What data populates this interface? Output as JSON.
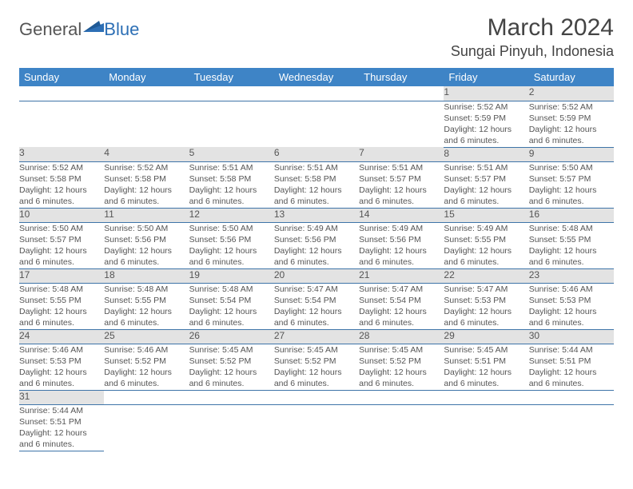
{
  "logo": {
    "text1": "General",
    "text2": "Blue"
  },
  "title": "March 2024",
  "location": "Sungai Pinyuh, Indonesia",
  "colors": {
    "header_bg": "#3e84c6",
    "header_text": "#ffffff",
    "daynum_bg": "#e3e3e3",
    "rule": "#3e74a8",
    "brand_blue": "#2d6fb5",
    "text": "#555555"
  },
  "day_headers": [
    "Sunday",
    "Monday",
    "Tuesday",
    "Wednesday",
    "Thursday",
    "Friday",
    "Saturday"
  ],
  "weeks": [
    [
      null,
      null,
      null,
      null,
      null,
      {
        "n": "1",
        "sr": "5:52 AM",
        "ss": "5:59 PM",
        "dl": "12 hours and 6 minutes."
      },
      {
        "n": "2",
        "sr": "5:52 AM",
        "ss": "5:59 PM",
        "dl": "12 hours and 6 minutes."
      }
    ],
    [
      {
        "n": "3",
        "sr": "5:52 AM",
        "ss": "5:58 PM",
        "dl": "12 hours and 6 minutes."
      },
      {
        "n": "4",
        "sr": "5:52 AM",
        "ss": "5:58 PM",
        "dl": "12 hours and 6 minutes."
      },
      {
        "n": "5",
        "sr": "5:51 AM",
        "ss": "5:58 PM",
        "dl": "12 hours and 6 minutes."
      },
      {
        "n": "6",
        "sr": "5:51 AM",
        "ss": "5:58 PM",
        "dl": "12 hours and 6 minutes."
      },
      {
        "n": "7",
        "sr": "5:51 AM",
        "ss": "5:57 PM",
        "dl": "12 hours and 6 minutes."
      },
      {
        "n": "8",
        "sr": "5:51 AM",
        "ss": "5:57 PM",
        "dl": "12 hours and 6 minutes."
      },
      {
        "n": "9",
        "sr": "5:50 AM",
        "ss": "5:57 PM",
        "dl": "12 hours and 6 minutes."
      }
    ],
    [
      {
        "n": "10",
        "sr": "5:50 AM",
        "ss": "5:57 PM",
        "dl": "12 hours and 6 minutes."
      },
      {
        "n": "11",
        "sr": "5:50 AM",
        "ss": "5:56 PM",
        "dl": "12 hours and 6 minutes."
      },
      {
        "n": "12",
        "sr": "5:50 AM",
        "ss": "5:56 PM",
        "dl": "12 hours and 6 minutes."
      },
      {
        "n": "13",
        "sr": "5:49 AM",
        "ss": "5:56 PM",
        "dl": "12 hours and 6 minutes."
      },
      {
        "n": "14",
        "sr": "5:49 AM",
        "ss": "5:56 PM",
        "dl": "12 hours and 6 minutes."
      },
      {
        "n": "15",
        "sr": "5:49 AM",
        "ss": "5:55 PM",
        "dl": "12 hours and 6 minutes."
      },
      {
        "n": "16",
        "sr": "5:48 AM",
        "ss": "5:55 PM",
        "dl": "12 hours and 6 minutes."
      }
    ],
    [
      {
        "n": "17",
        "sr": "5:48 AM",
        "ss": "5:55 PM",
        "dl": "12 hours and 6 minutes."
      },
      {
        "n": "18",
        "sr": "5:48 AM",
        "ss": "5:55 PM",
        "dl": "12 hours and 6 minutes."
      },
      {
        "n": "19",
        "sr": "5:48 AM",
        "ss": "5:54 PM",
        "dl": "12 hours and 6 minutes."
      },
      {
        "n": "20",
        "sr": "5:47 AM",
        "ss": "5:54 PM",
        "dl": "12 hours and 6 minutes."
      },
      {
        "n": "21",
        "sr": "5:47 AM",
        "ss": "5:54 PM",
        "dl": "12 hours and 6 minutes."
      },
      {
        "n": "22",
        "sr": "5:47 AM",
        "ss": "5:53 PM",
        "dl": "12 hours and 6 minutes."
      },
      {
        "n": "23",
        "sr": "5:46 AM",
        "ss": "5:53 PM",
        "dl": "12 hours and 6 minutes."
      }
    ],
    [
      {
        "n": "24",
        "sr": "5:46 AM",
        "ss": "5:53 PM",
        "dl": "12 hours and 6 minutes."
      },
      {
        "n": "25",
        "sr": "5:46 AM",
        "ss": "5:52 PM",
        "dl": "12 hours and 6 minutes."
      },
      {
        "n": "26",
        "sr": "5:45 AM",
        "ss": "5:52 PM",
        "dl": "12 hours and 6 minutes."
      },
      {
        "n": "27",
        "sr": "5:45 AM",
        "ss": "5:52 PM",
        "dl": "12 hours and 6 minutes."
      },
      {
        "n": "28",
        "sr": "5:45 AM",
        "ss": "5:52 PM",
        "dl": "12 hours and 6 minutes."
      },
      {
        "n": "29",
        "sr": "5:45 AM",
        "ss": "5:51 PM",
        "dl": "12 hours and 6 minutes."
      },
      {
        "n": "30",
        "sr": "5:44 AM",
        "ss": "5:51 PM",
        "dl": "12 hours and 6 minutes."
      }
    ],
    [
      {
        "n": "31",
        "sr": "5:44 AM",
        "ss": "5:51 PM",
        "dl": "12 hours and 6 minutes."
      },
      null,
      null,
      null,
      null,
      null,
      null
    ]
  ],
  "labels": {
    "sunrise": "Sunrise:",
    "sunset": "Sunset:",
    "daylight": "Daylight:"
  }
}
